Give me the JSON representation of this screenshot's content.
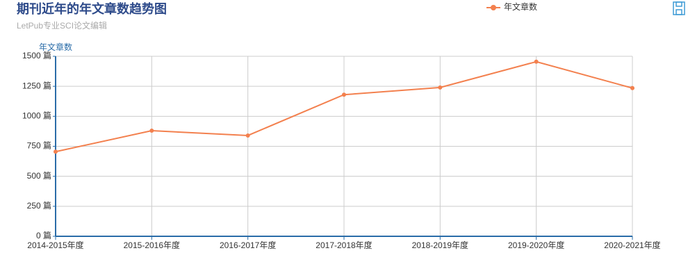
{
  "chart_data": {
    "type": "line",
    "title": "期刊近年的年文章数趋势图",
    "subtitle": "LetPub专业SCI论文编辑",
    "y_label": "年文章数",
    "categories": [
      "2014-2015年度",
      "2015-2016年度",
      "2016-2017年度",
      "2017-2018年度",
      "2018-2019年度",
      "2019-2020年度",
      "2020-2021年度"
    ],
    "series": [
      {
        "name": "年文章数",
        "color": "#f3804e",
        "values": [
          705,
          880,
          840,
          1180,
          1240,
          1455,
          1235
        ]
      }
    ],
    "ylim": [
      0,
      1500
    ],
    "yticks": [
      {
        "value": 0,
        "label": "0 篇"
      },
      {
        "value": 250,
        "label": "250 篇"
      },
      {
        "value": 500,
        "label": "500 篇"
      },
      {
        "value": 750,
        "label": "750 篇"
      },
      {
        "value": 1000,
        "label": "1000 篇"
      },
      {
        "value": 1250,
        "label": "1250 篇"
      },
      {
        "value": 1500,
        "label": "1500 篇"
      }
    ],
    "grid": true,
    "legend": "top"
  }
}
